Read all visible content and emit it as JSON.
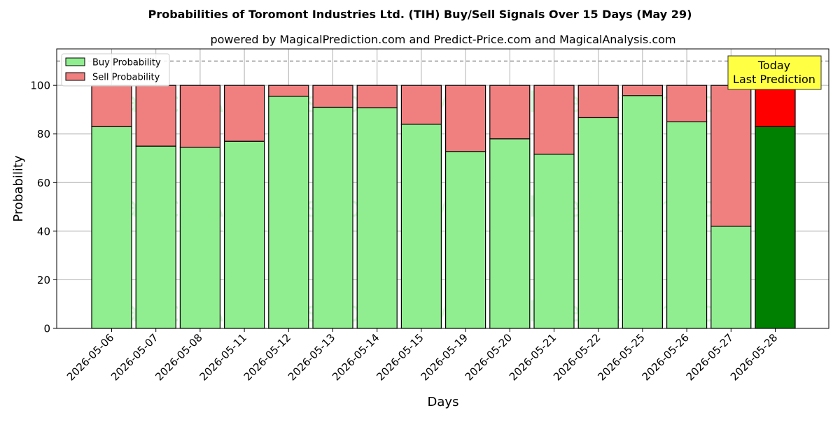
{
  "chart_data": {
    "type": "bar",
    "stacked": true,
    "title": "Probabilities of Toromont Industries Ltd. (TIH) Buy/Sell Signals Over 15 Days (May 29)",
    "subtitle": "powered by MagicalPrediction.com and Predict-Price.com and MagicalAnalysis.com",
    "xlabel": "Days",
    "ylabel": "Probability",
    "ylim": [
      0,
      115
    ],
    "yticks": [
      0,
      20,
      40,
      60,
      80,
      100
    ],
    "grid": true,
    "legend_position": "top-left",
    "reference_line": {
      "y": 110,
      "style": "dashed"
    },
    "categories": [
      "2026-05-06",
      "2026-05-07",
      "2026-05-08",
      "2026-05-11",
      "2026-05-12",
      "2026-05-13",
      "2026-05-14",
      "2026-05-15",
      "2026-05-19",
      "2026-05-20",
      "2026-05-21",
      "2026-05-22",
      "2026-05-25",
      "2026-05-26",
      "2026-05-27",
      "2026-05-28"
    ],
    "series": [
      {
        "name": "Buy Probability",
        "color": "#90ee90",
        "values": [
          83,
          75,
          74.5,
          77,
          95.5,
          91,
          90.8,
          84,
          72.8,
          78,
          71.7,
          86.7,
          95.8,
          85,
          42,
          83
        ]
      },
      {
        "name": "Sell Probability",
        "color": "#f08080",
        "values": [
          17,
          25,
          25.5,
          23,
          4.5,
          9,
          9.2,
          16,
          27.2,
          22,
          28.3,
          13.3,
          4.2,
          15,
          58,
          17
        ]
      }
    ],
    "highlight": {
      "index": 15,
      "buy_color": "#008000",
      "sell_color": "#ff0000"
    },
    "annotation": {
      "lines": [
        "Today",
        "Last Prediction"
      ],
      "background": "#ffff44"
    },
    "watermarks": [
      "MagicalAnalysis.com",
      "MagicalPrediction.com"
    ]
  }
}
